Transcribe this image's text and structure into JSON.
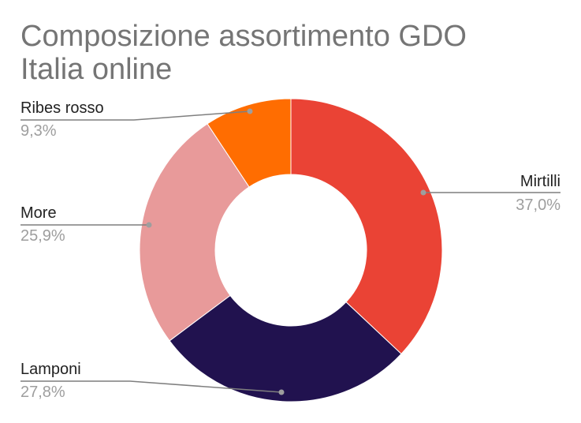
{
  "chart_data": {
    "type": "pie",
    "donut": true,
    "title": "Composizione assortimento GDO Italia online",
    "title_lines": [
      "Composizione assortimento GDO",
      "Italia online"
    ],
    "slices": [
      {
        "label": "Mirtilli",
        "value": 37.0,
        "value_label": "37,0%",
        "color": "#ea4335"
      },
      {
        "label": "Lamponi",
        "value": 27.8,
        "value_label": "27,8%",
        "color": "#21124f"
      },
      {
        "label": "More",
        "value": 25.9,
        "value_label": "25,9%",
        "color": "#e89a9a"
      },
      {
        "label": "Ribes rosso",
        "value": 9.3,
        "value_label": "9,3%",
        "color": "#ff6d01"
      }
    ],
    "start": "12 o'clock",
    "direction": "clockwise",
    "legend": "none"
  }
}
